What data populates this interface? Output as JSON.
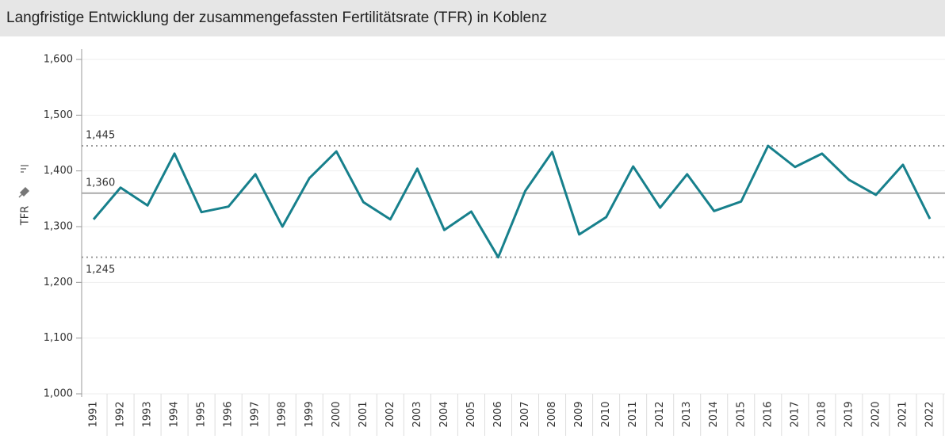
{
  "chart_data": {
    "type": "line",
    "title": "Langfristige Entwicklung der zusammengefassten Fertilitätsrate (TFR) in Koblenz",
    "y_label": "TFR",
    "categories": [
      "1991",
      "1992",
      "1993",
      "1994",
      "1995",
      "1996",
      "1997",
      "1998",
      "1999",
      "2000",
      "2001",
      "2002",
      "2003",
      "2004",
      "2005",
      "2006",
      "2007",
      "2008",
      "2009",
      "2010",
      "2011",
      "2012",
      "2013",
      "2014",
      "2015",
      "2016",
      "2017",
      "2018",
      "2019",
      "2020",
      "2021",
      "2022"
    ],
    "series": [
      {
        "name": "TFR",
        "color": "#17808c",
        "values": [
          1.313,
          1.37,
          1.338,
          1.431,
          1.326,
          1.336,
          1.394,
          1.3,
          1.387,
          1.435,
          1.344,
          1.313,
          1.404,
          1.294,
          1.327,
          1.245,
          1.364,
          1.434,
          1.286,
          1.317,
          1.408,
          1.334,
          1.394,
          1.328,
          1.345,
          1.445,
          1.407,
          1.431,
          1.384,
          1.357,
          1.411,
          1.314
        ]
      }
    ],
    "ylim": [
      1.0,
      1.6
    ],
    "yticks": [
      {
        "value": 1.0,
        "label": "1,000"
      },
      {
        "value": 1.1,
        "label": "1,100"
      },
      {
        "value": 1.2,
        "label": "1,200"
      },
      {
        "value": 1.3,
        "label": "1,300"
      },
      {
        "value": 1.4,
        "label": "1,400"
      },
      {
        "value": 1.5,
        "label": "1,500"
      },
      {
        "value": 1.6,
        "label": "1,600"
      }
    ],
    "reference_lines": [
      {
        "value": 1.445,
        "label": "1,445",
        "style": "dotted"
      },
      {
        "value": 1.36,
        "label": "1,360",
        "style": "solid"
      },
      {
        "value": 1.245,
        "label": "1,245",
        "style": "dotted"
      }
    ],
    "grid": true
  }
}
